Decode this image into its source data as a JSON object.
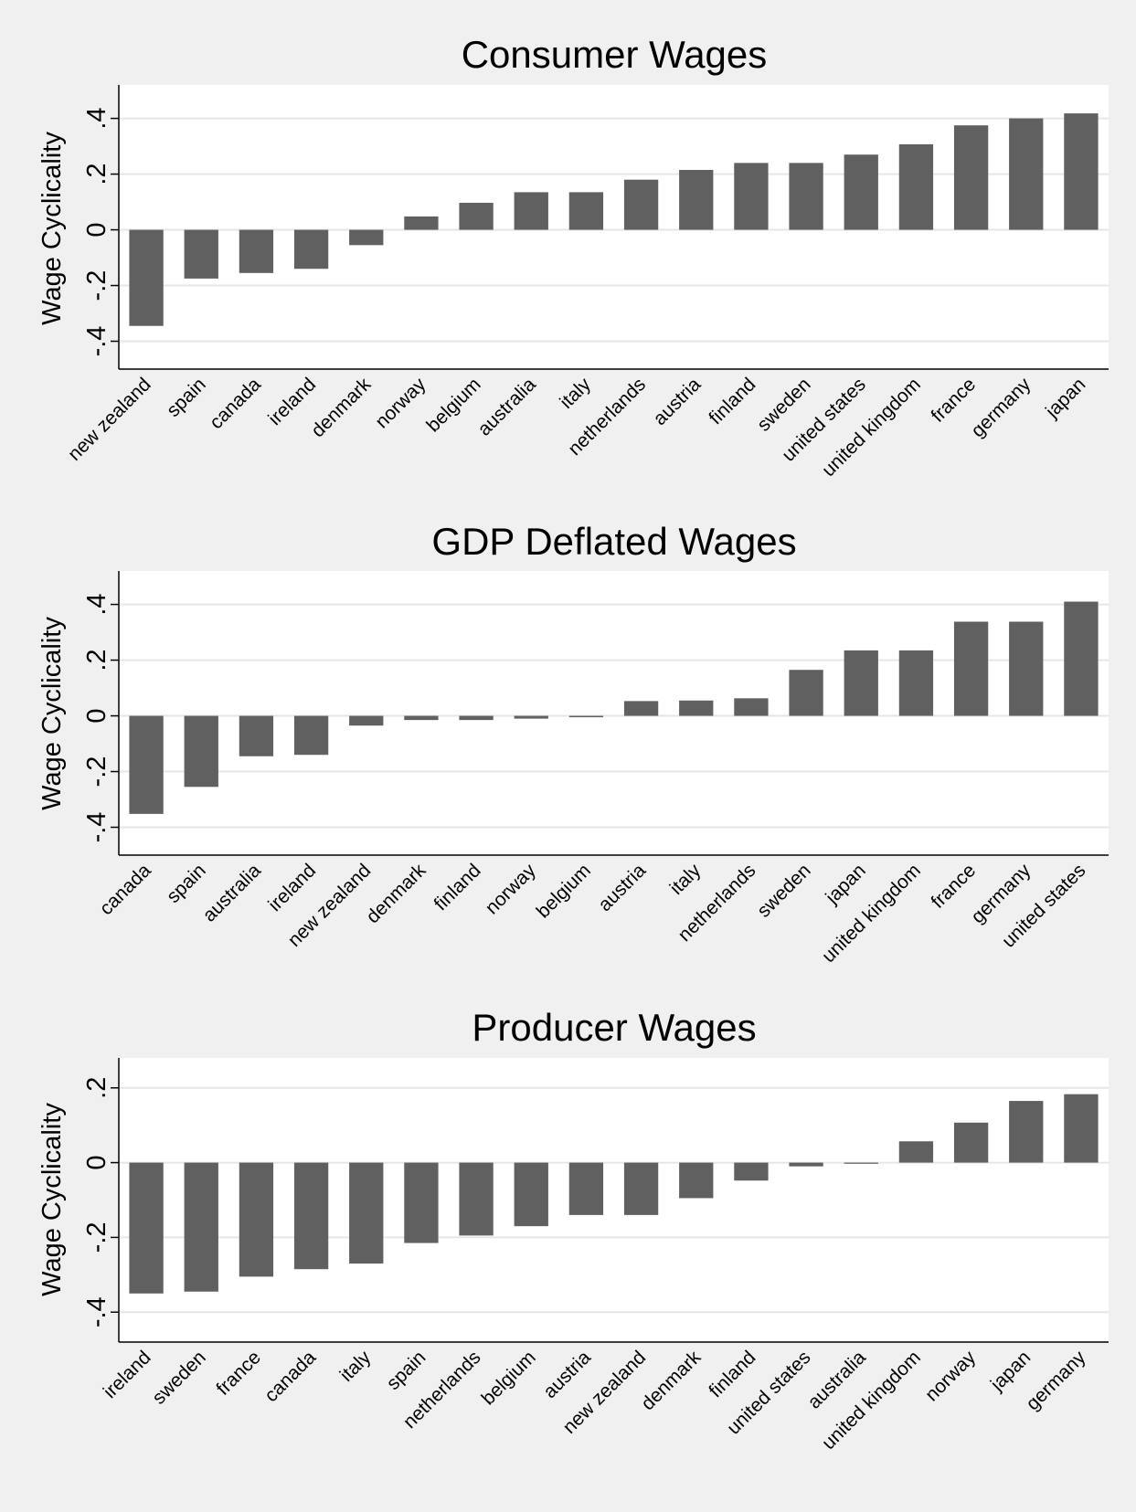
{
  "chart_data": [
    {
      "type": "bar",
      "title": "Consumer Wages",
      "ylabel": "Wage Cyclicality",
      "xlabel": "",
      "ylim": [
        -0.5,
        0.52
      ],
      "yticks": [
        -0.4,
        -0.2,
        0,
        0.2,
        0.4
      ],
      "ytick_labels": [
        "-.4",
        "-.2",
        "0",
        ".2",
        ".4"
      ],
      "grid": true,
      "bar_color": "#606060",
      "categories": [
        "new zealand",
        "spain",
        "canada",
        "ireland",
        "denmark",
        "norway",
        "belgium",
        "australia",
        "italy",
        "netherlands",
        "austria",
        "finland",
        "sweden",
        "united states",
        "united kingdom",
        "france",
        "germany",
        "japan"
      ],
      "values": [
        -0.345,
        -0.175,
        -0.155,
        -0.14,
        -0.055,
        0.048,
        0.097,
        0.135,
        0.135,
        0.18,
        0.215,
        0.24,
        0.24,
        0.27,
        0.307,
        0.375,
        0.4,
        0.418
      ]
    },
    {
      "type": "bar",
      "title": "GDP Deflated Wages",
      "ylabel": "Wage Cyclicality",
      "xlabel": "",
      "ylim": [
        -0.5,
        0.52
      ],
      "yticks": [
        -0.4,
        -0.2,
        0,
        0.2,
        0.4
      ],
      "ytick_labels": [
        "-.4",
        "-.2",
        "0",
        ".2",
        ".4"
      ],
      "grid": true,
      "bar_color": "#606060",
      "categories": [
        "canada",
        "spain",
        "australia",
        "ireland",
        "new zealand",
        "denmark",
        "finland",
        "norway",
        "belgium",
        "austria",
        "italy",
        "netherlands",
        "sweden",
        "japan",
        "united kingdom",
        "france",
        "germany",
        "united states"
      ],
      "values": [
        -0.352,
        -0.255,
        -0.145,
        -0.14,
        -0.035,
        -0.015,
        -0.015,
        -0.01,
        -0.005,
        0.053,
        0.055,
        0.063,
        0.165,
        0.235,
        0.235,
        0.338,
        0.338,
        0.41
      ]
    },
    {
      "type": "bar",
      "title": "Producer Wages",
      "ylabel": "Wage Cyclicality",
      "xlabel": "",
      "ylim": [
        -0.48,
        0.28
      ],
      "yticks": [
        -0.4,
        -0.2,
        0,
        0.2
      ],
      "ytick_labels": [
        "-.4",
        "-.2",
        "0",
        ".2"
      ],
      "grid": true,
      "bar_color": "#606060",
      "categories": [
        "ireland",
        "sweden",
        "france",
        "canada",
        "italy",
        "spain",
        "netherlands",
        "belgium",
        "austria",
        "new zealand",
        "denmark",
        "finland",
        "united states",
        "australia",
        "united kingdom",
        "norway",
        "japan",
        "germany"
      ],
      "values": [
        -0.35,
        -0.345,
        -0.305,
        -0.285,
        -0.27,
        -0.215,
        -0.195,
        -0.17,
        -0.14,
        -0.14,
        -0.095,
        -0.048,
        -0.01,
        -0.003,
        0.057,
        0.107,
        0.165,
        0.183
      ]
    }
  ]
}
